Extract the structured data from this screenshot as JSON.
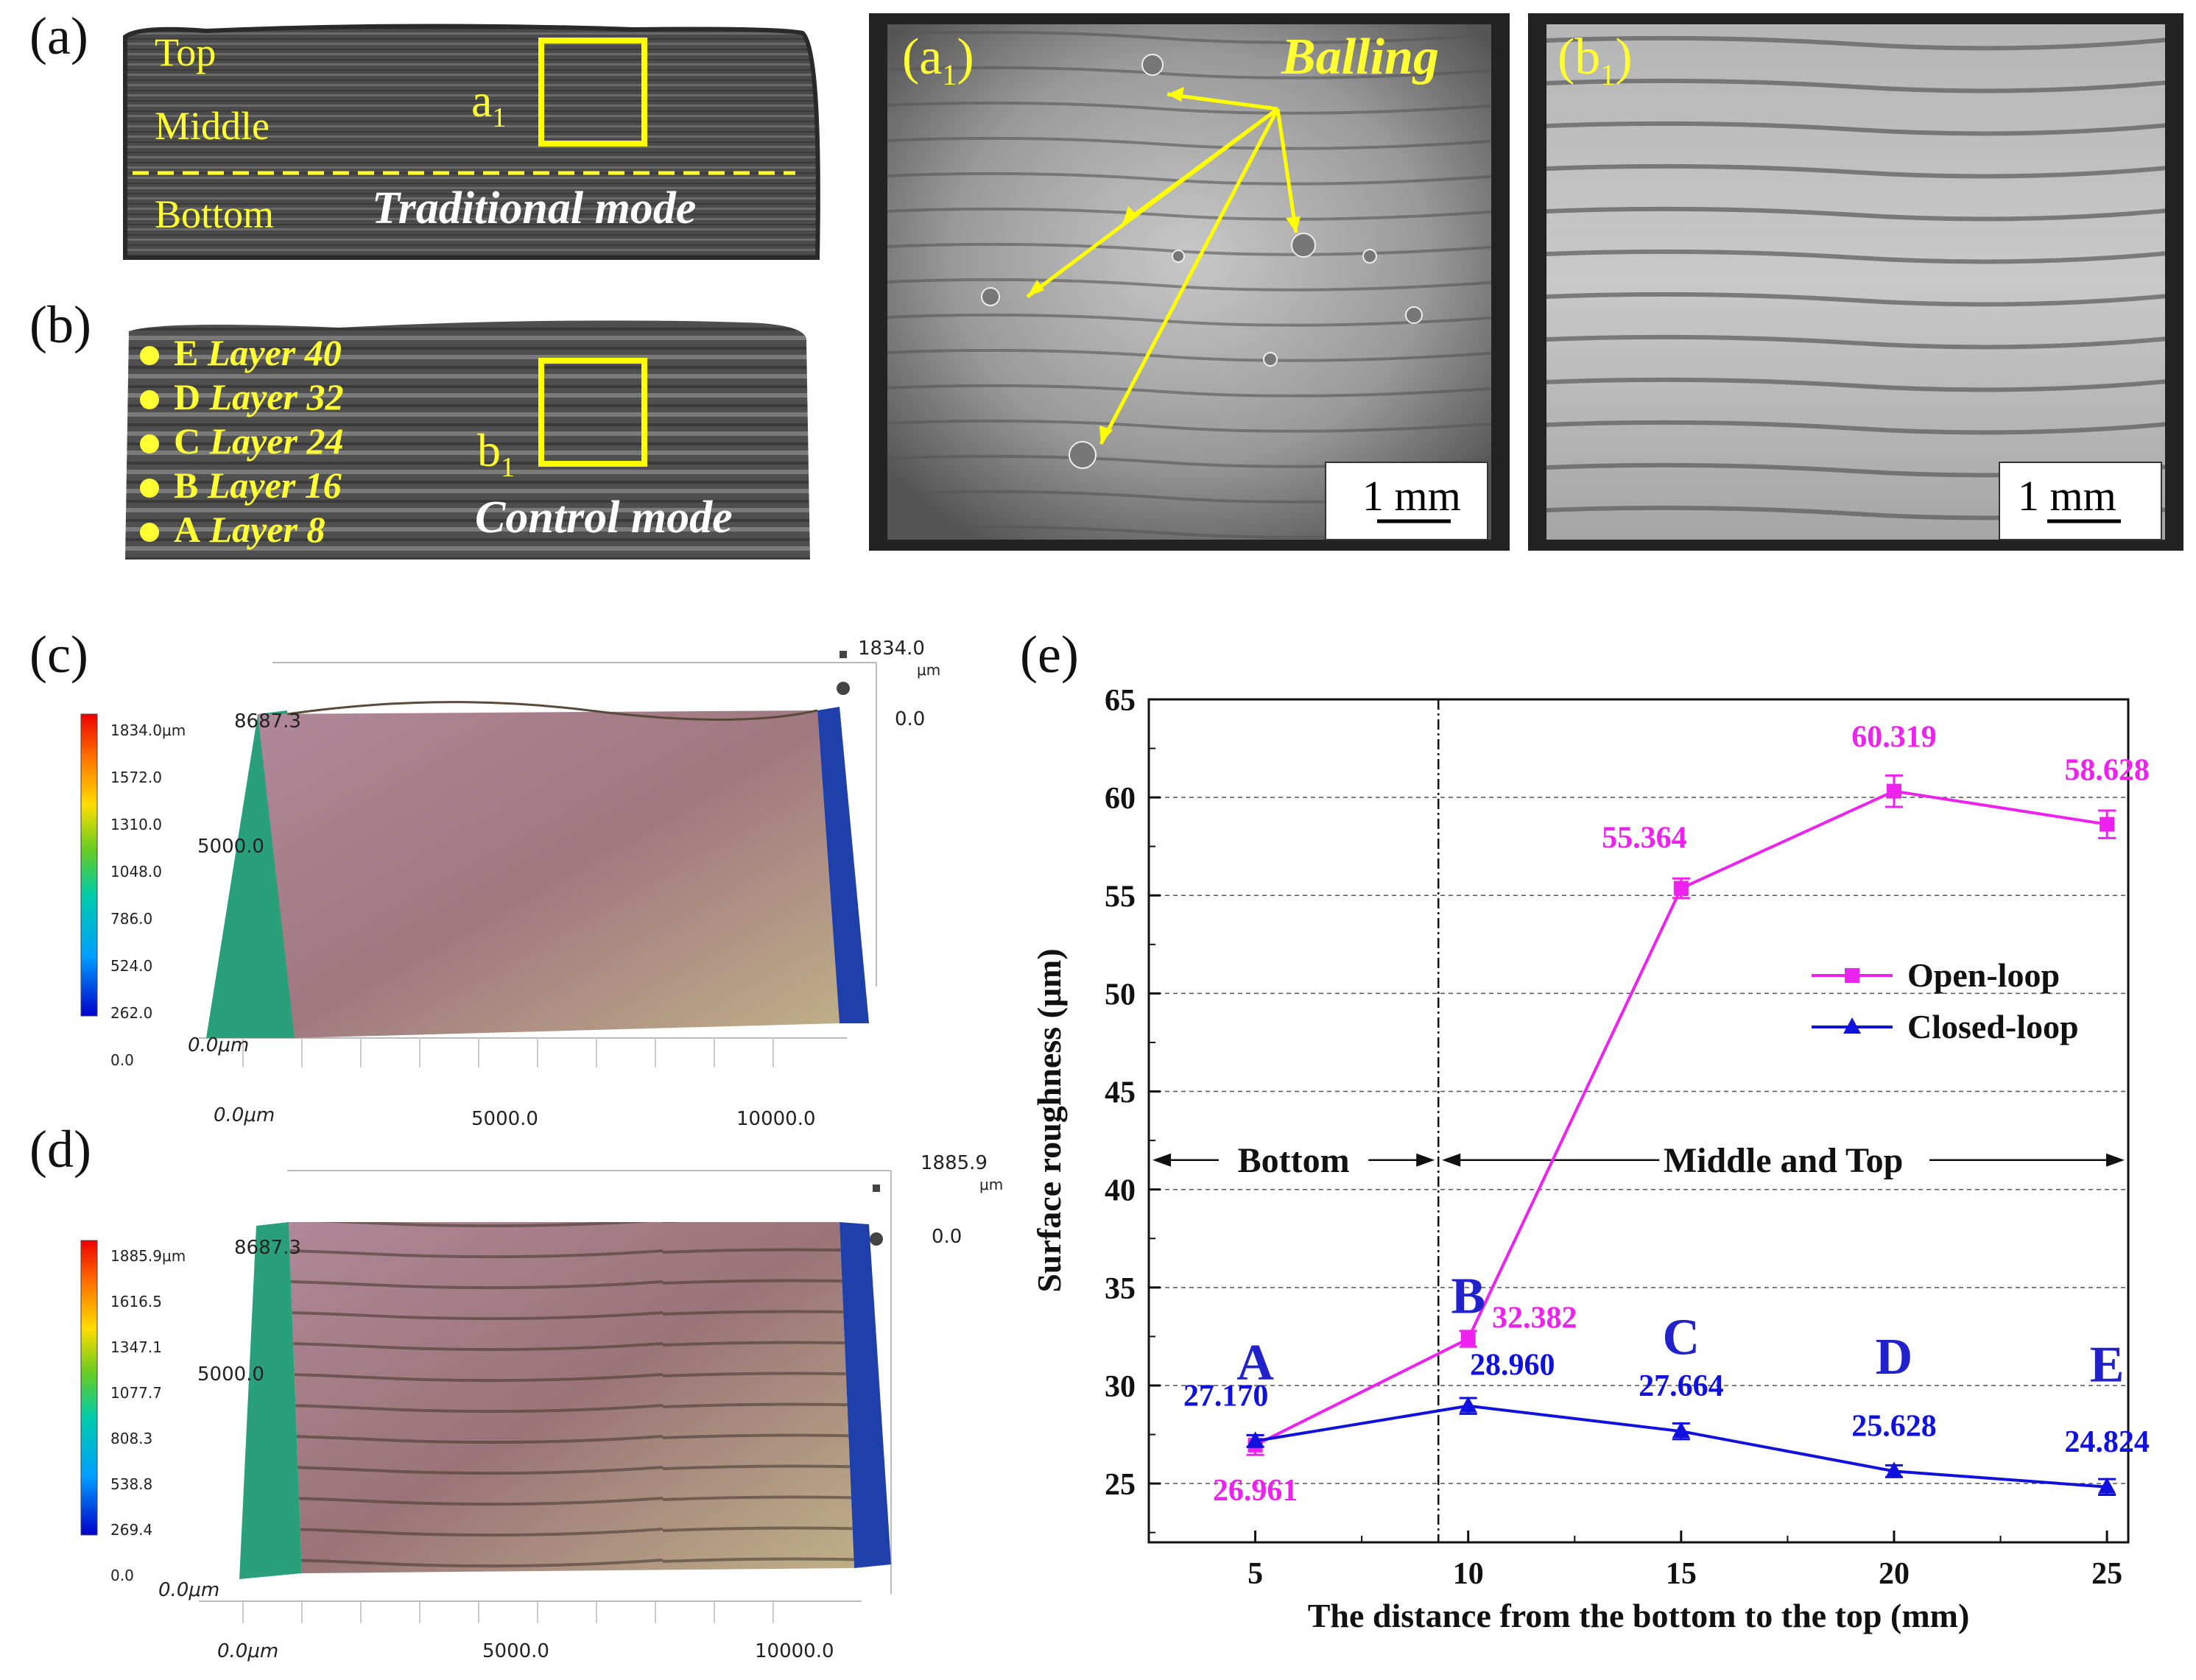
{
  "panels": {
    "a": {
      "label": "(a)",
      "region_top": "Top",
      "region_middle": "Middle",
      "region_bottom": "Bottom",
      "mode": "Traditional mode",
      "box_label": "a",
      "box_sub": "1"
    },
    "b": {
      "label": "(b)",
      "mode": "Control mode",
      "box_label": "b",
      "box_sub": "1",
      "layers": [
        {
          "point": "E",
          "layer": "Layer 40"
        },
        {
          "point": "D",
          "layer": "Layer 32"
        },
        {
          "point": "C",
          "layer": "Layer 24"
        },
        {
          "point": "B",
          "layer": "Layer 16"
        },
        {
          "point": "A",
          "layer": "Layer 8"
        }
      ]
    },
    "a1": {
      "label": "(a",
      "sub": "1",
      "close": ")",
      "annotation": "Balling",
      "scale": "1 mm"
    },
    "b1": {
      "label": "(b",
      "sub": "1",
      "close": ")",
      "scale": "1 mm"
    },
    "c": {
      "label": "(c)",
      "colorbar": [
        "1834.0μm",
        "1572.0",
        "1310.0",
        "1048.0",
        "786.0",
        "524.0",
        "262.0",
        "0.0"
      ],
      "z_top": "1834.0",
      "z_unit": "μm",
      "z_zero": "0.0",
      "y_top": "8687.3",
      "y_mid": "5000.0",
      "origin": "0.0μm",
      "x_ticks": [
        "0.0μm",
        "5000.0",
        "10000.0"
      ]
    },
    "d": {
      "label": "(d)",
      "colorbar": [
        "1885.9μm",
        "1616.5",
        "1347.1",
        "1077.7",
        "808.3",
        "538.8",
        "269.4",
        "0.0"
      ],
      "z_top": "1885.9",
      "z_unit": "μm",
      "z_zero": "0.0",
      "y_top": "8687.3",
      "y_mid": "5000.0",
      "origin": "0.0μm",
      "x_ticks": [
        "0.0μm",
        "5000.0",
        "10000.0"
      ]
    },
    "e": {
      "label": "(e)"
    }
  },
  "chart_data": {
    "type": "line",
    "xlabel": "The distance from the bottom to the top (mm)",
    "ylabel": "Surface roughness (μm)",
    "xlim": [
      2.5,
      25.5
    ],
    "ylim": [
      22,
      65
    ],
    "x_ticks": [
      5,
      10,
      15,
      20,
      25
    ],
    "y_ticks": [
      25,
      30,
      35,
      40,
      45,
      50,
      55,
      60,
      65
    ],
    "grid": true,
    "legend_position": "center-right",
    "x": [
      5,
      10,
      15,
      20,
      25
    ],
    "series": [
      {
        "name": "Open-loop",
        "color": "#ee22ee",
        "marker": "square",
        "values": [
          26.961,
          32.382,
          55.364,
          60.319,
          58.628
        ],
        "labels": [
          "26.961",
          "32.382",
          "55.364",
          "60.319",
          "58.628"
        ],
        "errors": [
          0.5,
          0.4,
          0.5,
          0.8,
          0.7
        ]
      },
      {
        "name": "Closed-loop",
        "color": "#1111dd",
        "marker": "triangle",
        "values": [
          27.17,
          28.96,
          27.664,
          25.628,
          24.824
        ],
        "labels": [
          "27.170",
          "28.960",
          "27.664",
          "25.628",
          "24.824"
        ],
        "errors": [
          0.3,
          0.4,
          0.4,
          0.3,
          0.4
        ]
      }
    ],
    "point_letters": [
      "A",
      "B",
      "C",
      "D",
      "E"
    ],
    "regions": [
      {
        "text": "Bottom"
      },
      {
        "text": "Middle and Top"
      }
    ],
    "divider_x": 9.3
  }
}
